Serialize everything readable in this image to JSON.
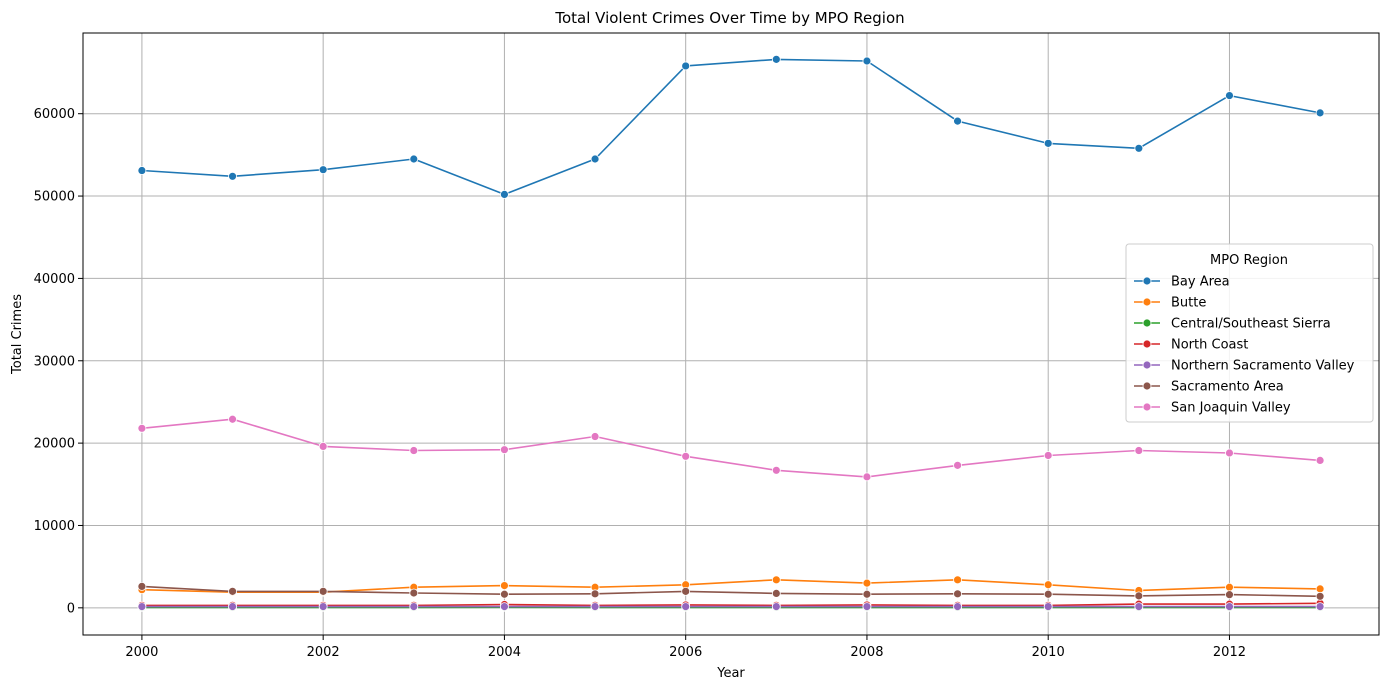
{
  "chart_data": {
    "type": "line",
    "title": "Total Violent Crimes Over Time by MPO Region",
    "xlabel": "Year",
    "ylabel": "Total Crimes",
    "x": [
      2000,
      2001,
      2002,
      2003,
      2004,
      2005,
      2006,
      2007,
      2008,
      2009,
      2010,
      2011,
      2012,
      2013
    ],
    "xlim": [
      1999.35,
      2013.65
    ],
    "ylim": [
      -3300,
      69800
    ],
    "x_ticks": [
      2000,
      2002,
      2004,
      2006,
      2008,
      2010,
      2012
    ],
    "x_tick_labels": [
      "2000",
      "2002",
      "2004",
      "2006",
      "2008",
      "2010",
      "2012"
    ],
    "y_ticks": [
      0,
      10000,
      20000,
      30000,
      40000,
      50000,
      60000
    ],
    "y_tick_labels": [
      "0",
      "10000",
      "20000",
      "30000",
      "40000",
      "50000",
      "60000"
    ],
    "grid": true,
    "legend": {
      "title": "MPO Region",
      "placement": "center-right"
    },
    "series": [
      {
        "name": "Bay Area",
        "color": "#1f77b4",
        "values": [
          53100,
          52400,
          53200,
          54500,
          50200,
          54500,
          65800,
          66600,
          66400,
          59100,
          56400,
          55800,
          62200,
          60100
        ]
      },
      {
        "name": "Butte",
        "color": "#ff7f0e",
        "values": [
          2200,
          1900,
          1900,
          2500,
          2700,
          2500,
          2800,
          3400,
          3000,
          3400,
          2800,
          2100,
          2500,
          2300
        ]
      },
      {
        "name": "Central/Southeast Sierra",
        "color": "#2ca02c",
        "values": [
          50,
          50,
          50,
          50,
          60,
          50,
          50,
          50,
          50,
          50,
          50,
          50,
          50,
          50
        ]
      },
      {
        "name": "North Coast",
        "color": "#d62728",
        "values": [
          300,
          300,
          300,
          300,
          400,
          300,
          350,
          300,
          350,
          300,
          300,
          450,
          450,
          550
        ]
      },
      {
        "name": "Northern Sacramento Valley",
        "color": "#9467bd",
        "values": [
          150,
          150,
          150,
          150,
          150,
          150,
          150,
          150,
          150,
          150,
          150,
          150,
          150,
          150
        ]
      },
      {
        "name": "Sacramento Area",
        "color": "#8c564b",
        "values": [
          2600,
          2000,
          2000,
          1800,
          1650,
          1700,
          2000,
          1750,
          1650,
          1700,
          1650,
          1450,
          1600,
          1400
        ]
      },
      {
        "name": "San Joaquin Valley",
        "color": "#e377c2",
        "values": [
          21800,
          22900,
          19600,
          19100,
          19200,
          20800,
          18400,
          16700,
          15900,
          17300,
          18500,
          19100,
          18800,
          17900
        ]
      }
    ]
  }
}
